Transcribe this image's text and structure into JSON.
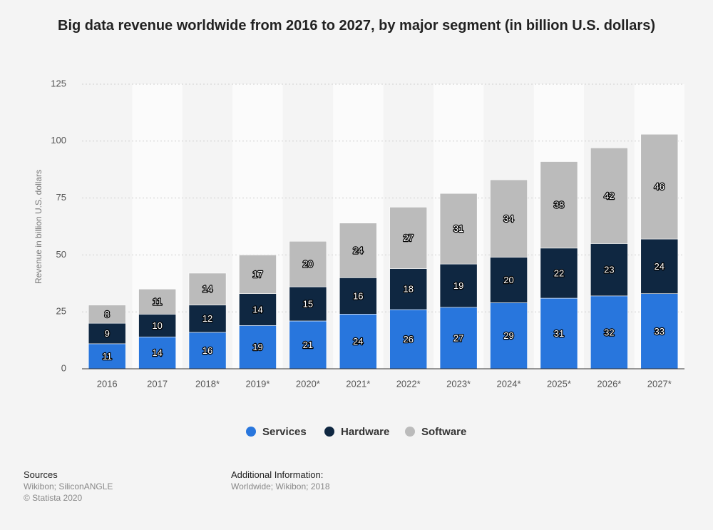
{
  "chart_data": {
    "type": "stacked_bar",
    "title": "Big data revenue worldwide from 2016 to 2027, by major segment (in billion U.S. dollars)",
    "y_label": "Revenue in billion U.S. dollars",
    "categories": [
      "2016",
      "2017",
      "2018*",
      "2019*",
      "2020*",
      "2021*",
      "2022*",
      "2023*",
      "2024*",
      "2025*",
      "2026*",
      "2027*"
    ],
    "series": [
      {
        "name": "Services",
        "color": "#2876dd",
        "values": [
          11,
          14,
          16,
          19,
          21,
          24,
          26,
          27,
          29,
          31,
          32,
          33
        ]
      },
      {
        "name": "Hardware",
        "color": "#0f2741",
        "values": [
          9,
          10,
          12,
          14,
          15,
          16,
          18,
          19,
          20,
          22,
          23,
          24
        ]
      },
      {
        "name": "Software",
        "color": "#bbbbbb",
        "values": [
          8,
          11,
          14,
          17,
          20,
          24,
          27,
          31,
          34,
          38,
          42,
          46
        ]
      }
    ],
    "ylim": [
      0,
      125
    ],
    "yticks": [
      0,
      25,
      50,
      75,
      100,
      125
    ],
    "grid": true,
    "legend": "bottom"
  },
  "footer": {
    "sources_title": "Sources",
    "sources": "Wikibon; SiliconANGLE",
    "copyright": "© Statista 2020",
    "info_title": "Additional Information:",
    "info": "Worldwide; Wikibon; 2018"
  }
}
